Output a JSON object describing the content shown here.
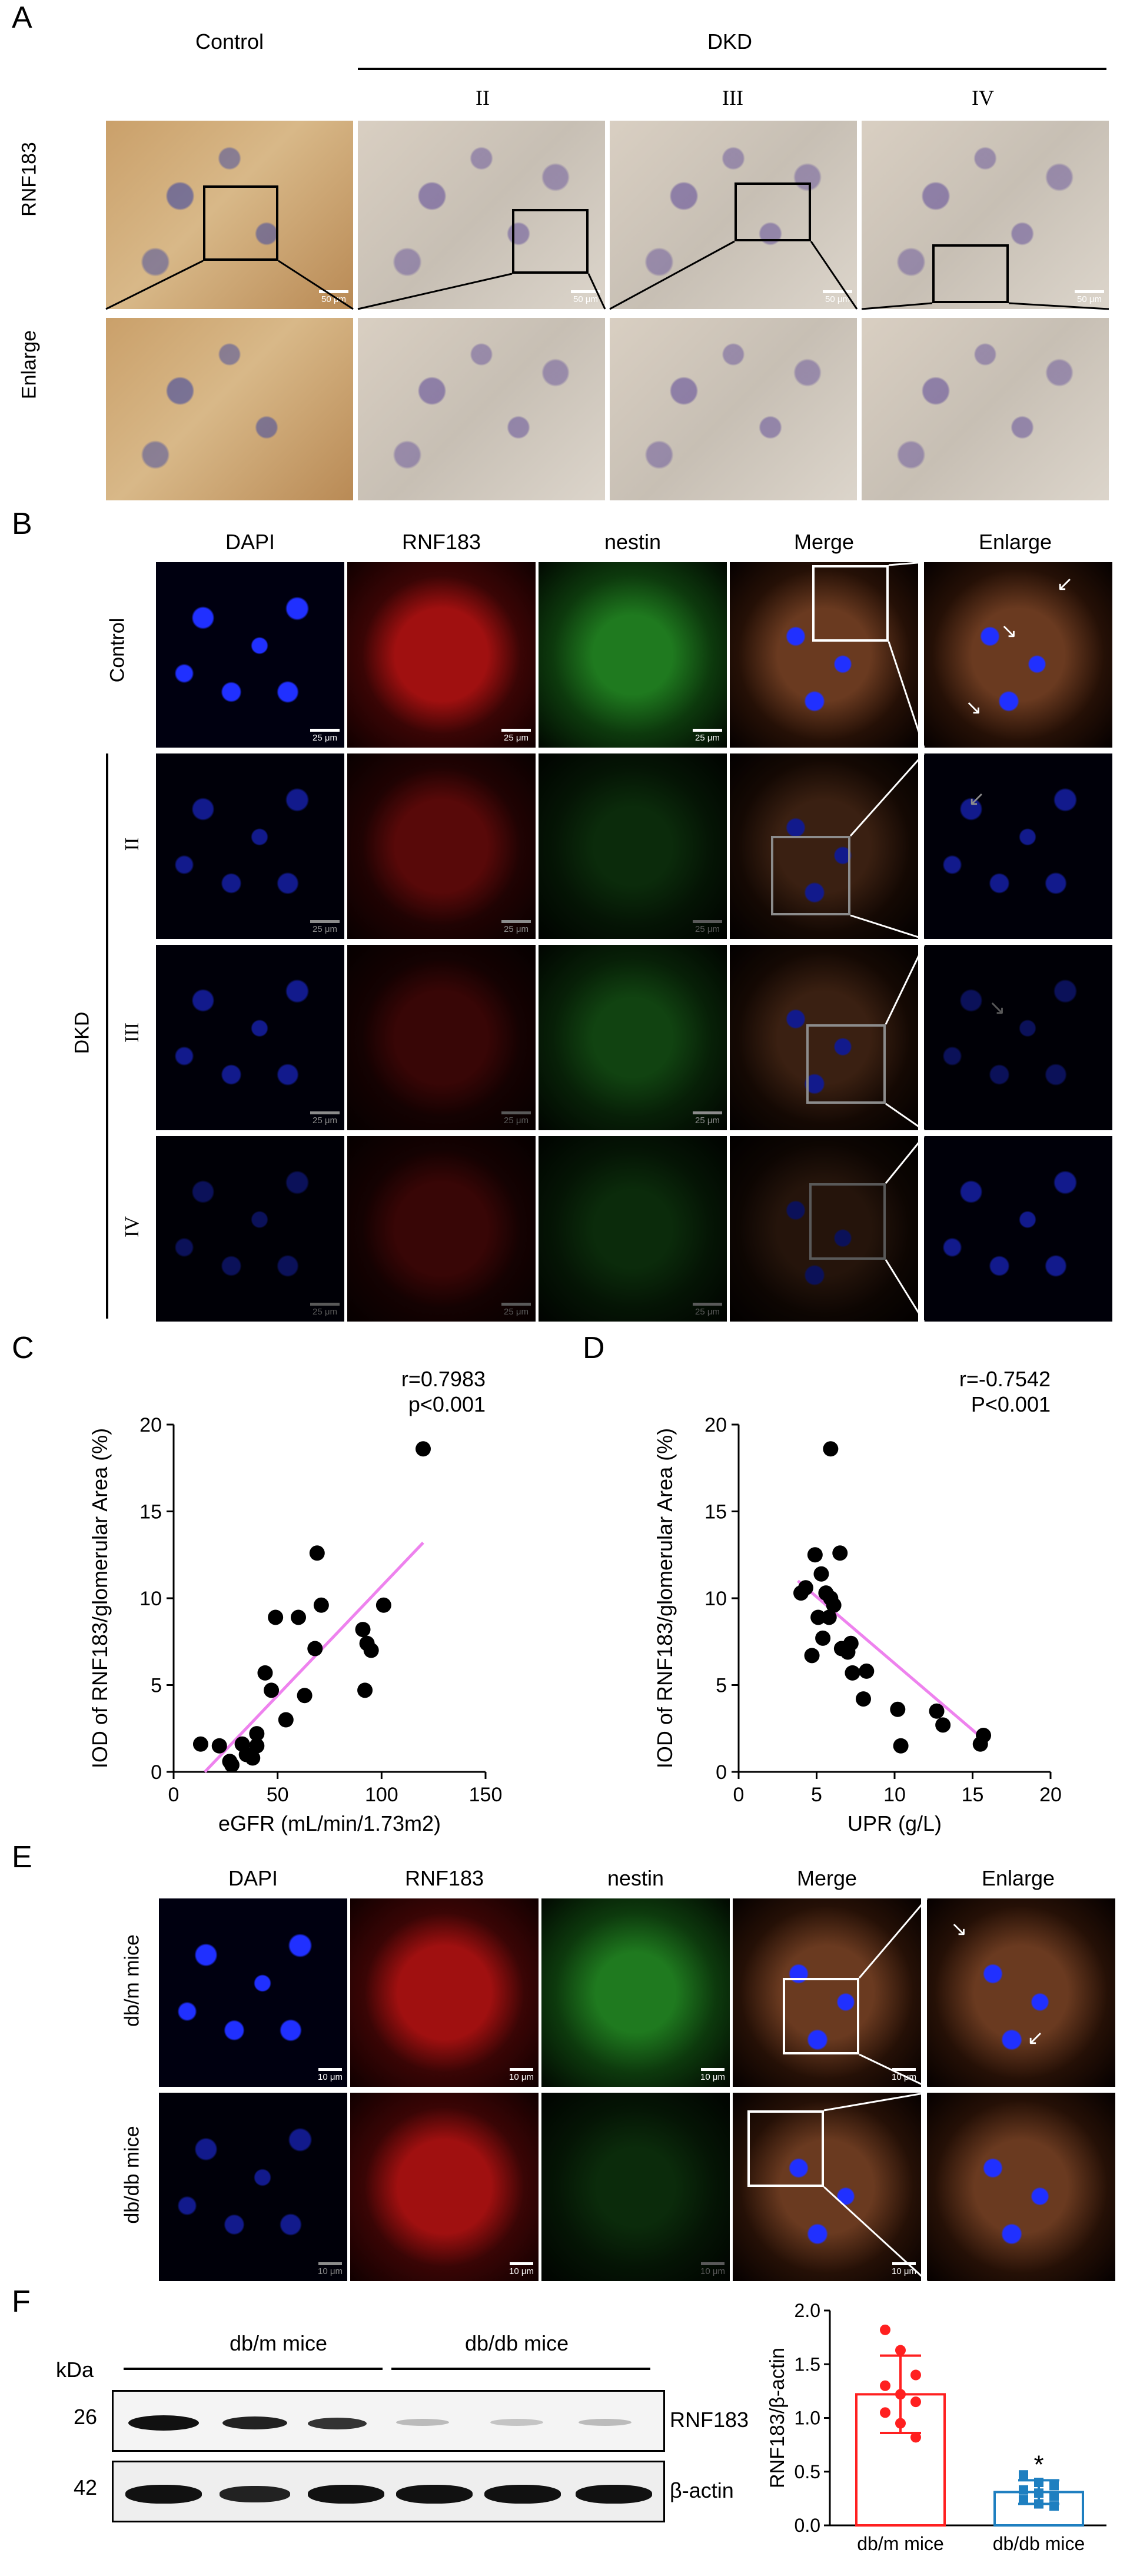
{
  "panel_labels": {
    "A": "A",
    "B": "B",
    "C": "C",
    "D": "D",
    "E": "E",
    "F": "F"
  },
  "panelA": {
    "col_control": "Control",
    "col_dkd": "DKD",
    "stages": [
      "II",
      "III",
      "IV"
    ],
    "row_rnf183": "RNF183",
    "row_enlarge": "Enlarge",
    "scale": "50 μm"
  },
  "panelB": {
    "cols": [
      "DAPI",
      "RNF183",
      "nestin",
      "Merge",
      "Enlarge"
    ],
    "row_control": "Control",
    "group_dkd": "DKD",
    "stages": [
      "II",
      "III",
      "IV"
    ],
    "scale": "25 μm"
  },
  "panelE": {
    "cols": [
      "DAPI",
      "RNF183",
      "nestin",
      "Merge",
      "Enlarge"
    ],
    "rows": [
      "db/m mice",
      "db/db mice"
    ],
    "scale": "10 μm"
  },
  "panelF": {
    "kda": "kDa",
    "group1": "db/m mice",
    "group2": "db/db mice",
    "band_labels": [
      "RNF183",
      "β-actin"
    ],
    "band_kda": [
      "26",
      "42"
    ]
  },
  "chart_data": [
    {
      "type": "scatter",
      "panel": "C",
      "xlabel": "eGFR (mL/min/1.73m2)",
      "ylabel": "IOD of RNF183/glomerular Area (%)",
      "xlim": [
        0,
        150
      ],
      "ylim": [
        0,
        20
      ],
      "xticks": [
        "0",
        "50",
        "100",
        "150"
      ],
      "yticks": [
        "0",
        "5",
        "10",
        "15",
        "20"
      ],
      "annotation_r": "r=0.7983",
      "annotation_p": "p<0.001",
      "fit_color": "#ee82ee",
      "fit": [
        [
          15,
          0
        ],
        [
          120,
          13.2
        ]
      ],
      "points": [
        [
          13,
          1.6
        ],
        [
          22,
          1.5
        ],
        [
          27,
          0.6
        ],
        [
          28,
          0.4
        ],
        [
          33,
          1.6
        ],
        [
          35,
          1.0
        ],
        [
          38,
          0.8
        ],
        [
          40,
          2.2
        ],
        [
          40,
          1.5
        ],
        [
          44,
          5.7
        ],
        [
          47,
          4.7
        ],
        [
          49,
          8.9
        ],
        [
          54,
          3.0
        ],
        [
          60,
          8.9
        ],
        [
          63,
          4.4
        ],
        [
          68,
          7.1
        ],
        [
          69,
          12.6
        ],
        [
          71,
          9.6
        ],
        [
          91,
          8.2
        ],
        [
          92,
          4.7
        ],
        [
          93,
          7.4
        ],
        [
          95,
          7.0
        ],
        [
          101,
          9.6
        ],
        [
          120,
          18.6
        ]
      ]
    },
    {
      "type": "scatter",
      "panel": "D",
      "xlabel": "UPR (g/L)",
      "ylabel": "IOD of RNF183/glomerular Area (%)",
      "xlim": [
        0,
        20
      ],
      "ylim": [
        0,
        20
      ],
      "xticks": [
        "0",
        "5",
        "10",
        "15",
        "20"
      ],
      "yticks": [
        "0",
        "5",
        "10",
        "15",
        "20"
      ],
      "annotation_r": "r=-0.7542",
      "annotation_p": "P<0.001",
      "fit_color": "#ee82ee",
      "fit": [
        [
          3.8,
          11.0
        ],
        [
          15.8,
          1.8
        ]
      ],
      "points": [
        [
          4.0,
          10.3
        ],
        [
          4.3,
          10.6
        ],
        [
          4.7,
          6.7
        ],
        [
          4.9,
          12.5
        ],
        [
          5.1,
          8.9
        ],
        [
          5.3,
          11.4
        ],
        [
          5.4,
          7.7
        ],
        [
          5.6,
          10.3
        ],
        [
          5.8,
          8.9
        ],
        [
          5.9,
          18.6
        ],
        [
          5.9,
          10.0
        ],
        [
          6.1,
          9.6
        ],
        [
          6.5,
          12.6
        ],
        [
          6.6,
          7.1
        ],
        [
          7.0,
          6.9
        ],
        [
          7.2,
          7.4
        ],
        [
          7.3,
          5.7
        ],
        [
          8.0,
          4.2
        ],
        [
          8.2,
          5.8
        ],
        [
          10.2,
          3.6
        ],
        [
          10.4,
          1.5
        ],
        [
          12.7,
          3.5
        ],
        [
          13.1,
          2.7
        ],
        [
          15.5,
          1.6
        ],
        [
          15.7,
          2.1
        ]
      ]
    },
    {
      "type": "bar",
      "panel": "F",
      "ylabel": "RNF183/β-actin",
      "categories": [
        "db/m mice",
        "db/db mice"
      ],
      "values": [
        1.22,
        0.31
      ],
      "errors": [
        0.36,
        0.11
      ],
      "ylim": [
        0,
        2.0
      ],
      "yticks": [
        "0.0",
        "0.5",
        "1.0",
        "1.5",
        "2.0"
      ],
      "colors": [
        "#ff2020",
        "#1e7fc0"
      ],
      "significance": "*",
      "points": [
        [
          1.82,
          1.63,
          1.4,
          1.3,
          1.22,
          1.15,
          1.05,
          0.95,
          0.82
        ],
        [
          0.47,
          0.4,
          0.37,
          0.33,
          0.3,
          0.27,
          0.24,
          0.2,
          0.18
        ]
      ]
    }
  ]
}
